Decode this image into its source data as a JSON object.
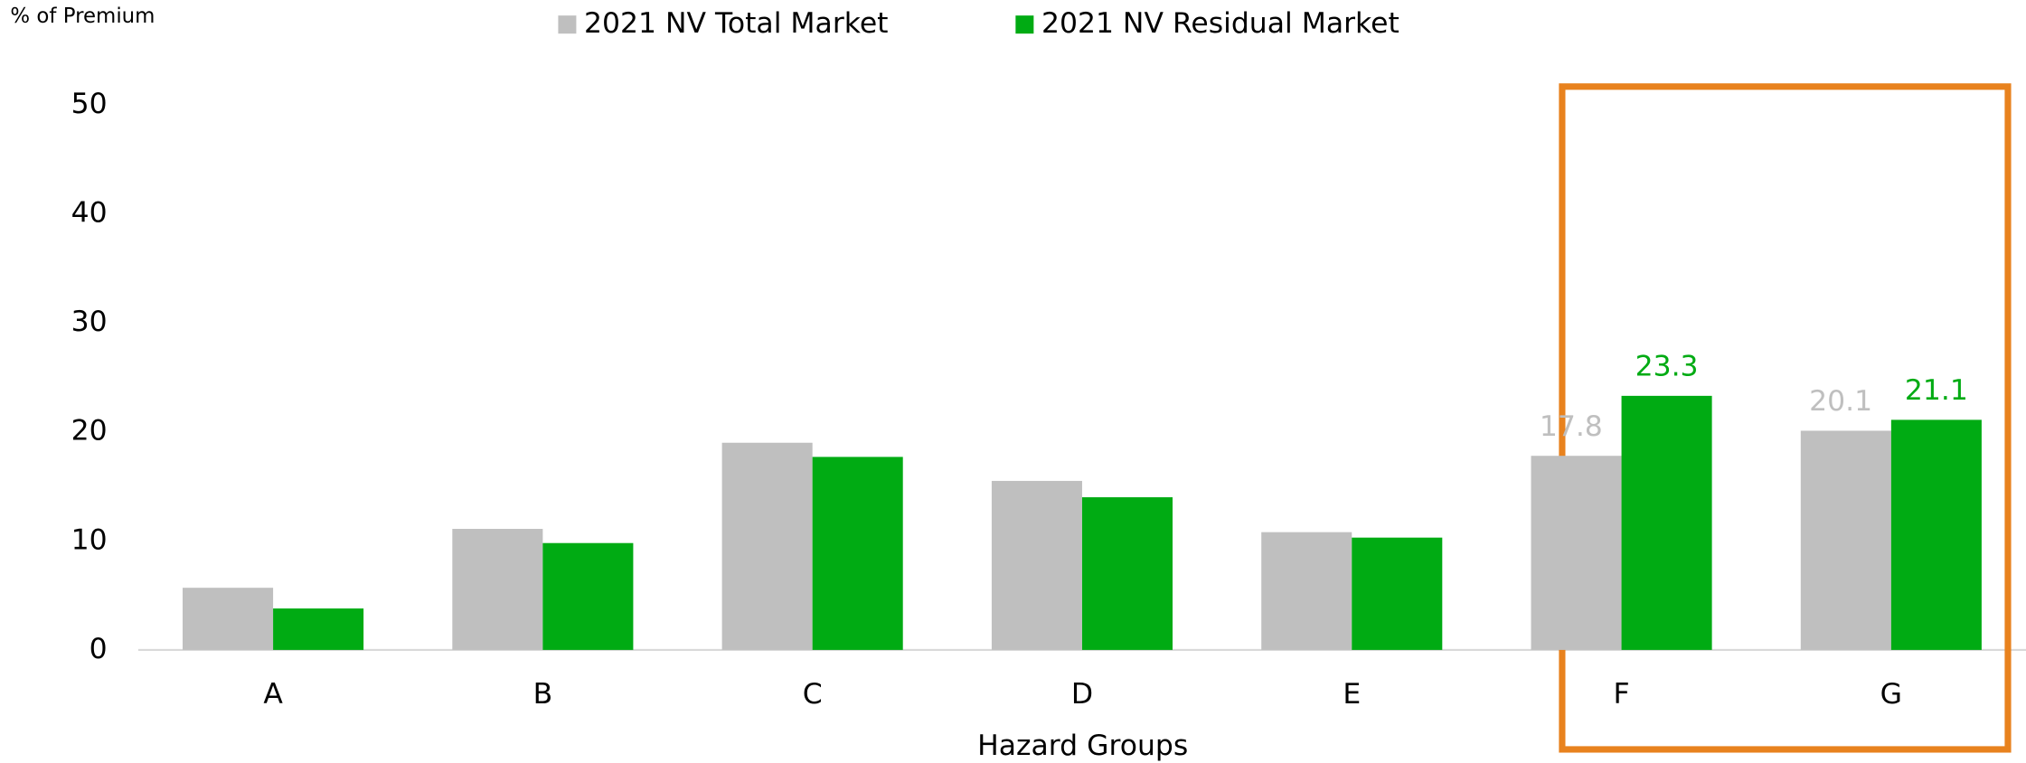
{
  "chart_data": {
    "type": "bar",
    "y_label": "% of Premium",
    "x_label": "Hazard Groups",
    "categories": [
      "A",
      "B",
      "C",
      "D",
      "E",
      "F",
      "G"
    ],
    "series": [
      {
        "name": "2021 NV Total Market",
        "color": "#bfbfbf",
        "values": [
          5.7,
          11.1,
          19.0,
          15.5,
          10.8,
          17.8,
          20.1
        ]
      },
      {
        "name": "2021 NV Residual Market",
        "color": "#00ab13",
        "values": [
          3.8,
          9.8,
          17.7,
          14.0,
          10.3,
          23.3,
          21.1
        ]
      }
    ],
    "ylim": [
      0,
      50
    ],
    "yticks": [
      0,
      10,
      20,
      30,
      40,
      50
    ],
    "legend": "top",
    "highlight": {
      "categories": [
        "F",
        "G"
      ],
      "color": "#e8821e"
    }
  }
}
